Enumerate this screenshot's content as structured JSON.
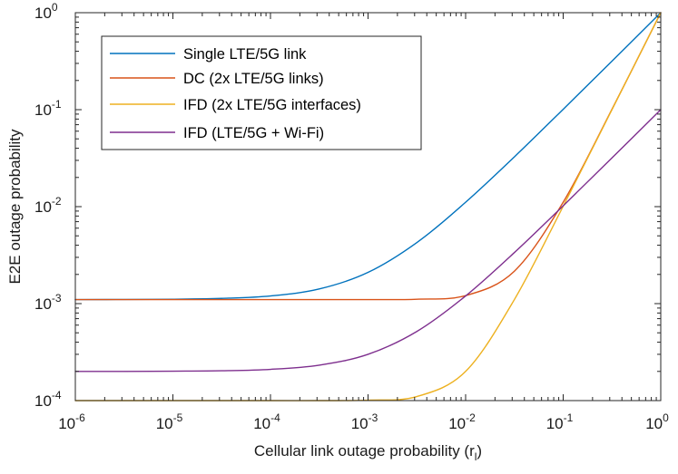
{
  "chart_data": {
    "type": "line",
    "xscale": "log",
    "yscale": "log",
    "xlim": [
      1e-06,
      1
    ],
    "ylim": [
      0.0001,
      1
    ],
    "xlabel": "Cellular link outage probability (r",
    "xlabel_subscript": "l",
    "xlabel_suffix": ")",
    "ylabel": "E2E outage probability",
    "x_tick_base": "10",
    "x_tick_exponents": [
      "-6",
      "-5",
      "-4",
      "-3",
      "-2",
      "-1",
      "0"
    ],
    "y_tick_base": "10",
    "y_tick_exponents": [
      "-4",
      "-3",
      "-2",
      "-1",
      "0"
    ],
    "legend_position": "top-left",
    "grid": false,
    "x": [
      1e-06,
      3.16e-06,
      1e-05,
      3.16e-05,
      0.0001,
      0.000316,
      0.001,
      0.00316,
      0.01,
      0.0316,
      0.1,
      0.316,
      1
    ],
    "series": [
      {
        "name": "Single LTE/5G link",
        "color": "#0072BD",
        "values": [
          0.001101,
          0.001103,
          0.00111,
          0.001132,
          0.0012,
          0.001416,
          0.0021,
          0.00426,
          0.0111,
          0.0326,
          0.1009,
          0.3163,
          1.0
        ]
      },
      {
        "name": "DC (2x LTE/5G links)",
        "color": "#D95319",
        "values": [
          0.0011,
          0.0011,
          0.0011,
          0.0011,
          0.0011,
          0.0011,
          0.0011,
          0.00111,
          0.00121,
          0.00216,
          0.0111,
          0.1008,
          1.0
        ]
      },
      {
        "name": "IFD (2x LTE/5G interfaces)",
        "color": "#EDB120",
        "values": [
          0.0001,
          0.0001,
          0.0001,
          0.0001,
          0.0001,
          0.0001,
          0.000101,
          0.00011,
          0.0002,
          0.0011,
          0.0101,
          0.1,
          1.0
        ]
      },
      {
        "name": "IFD (LTE/5G + Wi-Fi)",
        "color": "#7E2F8E",
        "values": [
          0.0002,
          0.0002,
          0.000201,
          0.000203,
          0.00021,
          0.000232,
          0.0003,
          0.000516,
          0.0012,
          0.00336,
          0.0102,
          0.0318,
          0.1
        ]
      }
    ]
  }
}
